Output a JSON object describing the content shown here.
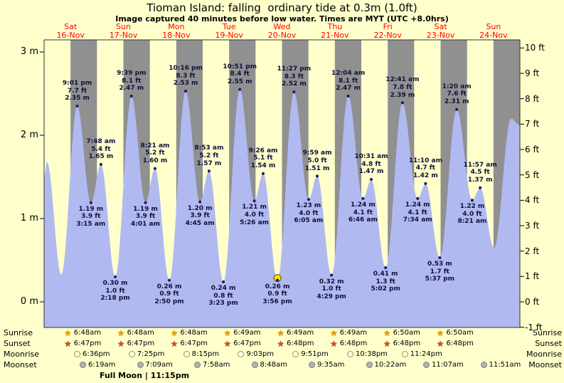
{
  "title": "Tioman Island: falling  ordinary tide at 0.3m (1.0ft)",
  "subtitle": "Image captured 40 minutes before low water. Times are MYT (UTC +8.0hrs)",
  "days": [
    {
      "name": "Sat",
      "date": "16-Nov"
    },
    {
      "name": "Sun",
      "date": "17-Nov"
    },
    {
      "name": "Mon",
      "date": "18-Nov"
    },
    {
      "name": "Tue",
      "date": "19-Nov"
    },
    {
      "name": "Wed",
      "date": "20-Nov"
    },
    {
      "name": "Thu",
      "date": "21-Nov"
    },
    {
      "name": "Fri",
      "date": "22-Nov"
    },
    {
      "name": "Sat",
      "date": "23-Nov"
    },
    {
      "name": "Sun",
      "date": "24-Nov"
    }
  ],
  "axes": {
    "left_unit": "m",
    "right_unit": "ft",
    "m_ticks": [
      {
        "label": "3 m",
        "value": 3
      },
      {
        "label": "2 m",
        "value": 2
      },
      {
        "label": "1 m",
        "value": 1
      },
      {
        "label": "0 m",
        "value": 0
      }
    ],
    "ft_ticks": [
      {
        "label": "10 ft",
        "value": 10
      },
      {
        "label": "9 ft",
        "value": 9
      },
      {
        "label": "8 ft",
        "value": 8
      },
      {
        "label": "7 ft",
        "value": 7
      },
      {
        "label": "6 ft",
        "value": 6
      },
      {
        "label": "5 ft",
        "value": 5
      },
      {
        "label": "4 ft",
        "value": 4
      },
      {
        "label": "3 ft",
        "value": 3
      },
      {
        "label": "2 ft",
        "value": 2
      },
      {
        "label": "1 ft",
        "value": 1
      },
      {
        "label": "0 ft",
        "value": 0
      },
      {
        "label": "-1 ft",
        "value": -1
      }
    ]
  },
  "chart_data": {
    "type": "area",
    "title": "Tide height curve for Tioman Island, Sat 16-Nov to Sun 24-Nov",
    "x_axis": "time (MYT), hours measured from Sat 16-Nov 00:00",
    "x_range_hours": [
      6,
      222
    ],
    "y_range_m": [
      -0.33,
      3.16
    ],
    "night_shading": "18:00 to 06:00 each day",
    "tide_events": [
      {
        "t": 21.03,
        "type": "high",
        "time": "9:01 pm",
        "height_ft": "7.7 ft",
        "height_m": "2.35 m",
        "m": 2.35
      },
      {
        "t": 27.25,
        "type": "low",
        "time": "3:15 am",
        "height_ft": "3.9 ft",
        "height_m": "1.19 m",
        "m": 1.19
      },
      {
        "t": 31.8,
        "type": "high",
        "time": "7:48 am",
        "height_ft": "5.4 ft",
        "height_m": "1.65 m",
        "m": 1.65
      },
      {
        "t": 38.3,
        "type": "low",
        "time": "2:18 pm",
        "height_ft": "1.0 ft",
        "height_m": "0.30 m",
        "m": 0.3
      },
      {
        "t": 45.65,
        "type": "high",
        "time": "9:39 pm",
        "height_ft": "8.1 ft",
        "height_m": "2.47 m",
        "m": 2.47
      },
      {
        "t": 52.02,
        "type": "low",
        "time": "4:01 am",
        "height_ft": "3.9 ft",
        "height_m": "1.19 m",
        "m": 1.19
      },
      {
        "t": 56.35,
        "type": "high",
        "time": "8:21 am",
        "height_ft": "5.2 ft",
        "height_m": "1.60 m",
        "m": 1.6
      },
      {
        "t": 62.83,
        "type": "low",
        "time": "2:50 pm",
        "height_ft": "0.9 ft",
        "height_m": "0.26 m",
        "m": 0.26
      },
      {
        "t": 70.27,
        "type": "high",
        "time": "10:16 pm",
        "height_ft": "8.3 ft",
        "height_m": "2.53 m",
        "m": 2.53
      },
      {
        "t": 76.75,
        "type": "low",
        "time": "4:45 am",
        "height_ft": "3.9 ft",
        "height_m": "1.20 m",
        "m": 1.2
      },
      {
        "t": 80.88,
        "type": "high",
        "time": "8:53 am",
        "height_ft": "5.2 ft",
        "height_m": "1.57 m",
        "m": 1.57
      },
      {
        "t": 87.38,
        "type": "low",
        "time": "3:23 pm",
        "height_ft": "0.8 ft",
        "height_m": "0.24 m",
        "m": 0.24
      },
      {
        "t": 94.85,
        "type": "high",
        "time": "10:51 pm",
        "height_ft": "8.4 ft",
        "height_m": "2.55 m",
        "m": 2.55
      },
      {
        "t": 101.43,
        "type": "low",
        "time": "5:26 am",
        "height_ft": "4.0 ft",
        "height_m": "1.21 m",
        "m": 1.21
      },
      {
        "t": 105.43,
        "type": "high",
        "time": "9:26 am",
        "height_ft": "5.1 ft",
        "height_m": "1.54 m",
        "m": 1.54
      },
      {
        "t": 111.93,
        "type": "low",
        "time": "3:56 pm",
        "height_ft": "0.9 ft",
        "height_m": "0.26 m",
        "m": 0.26,
        "current": true
      },
      {
        "t": 119.45,
        "type": "high",
        "time": "11:27 pm",
        "height_ft": "8.3 ft",
        "height_m": "2.52 m",
        "m": 2.52
      },
      {
        "t": 126.08,
        "type": "low",
        "time": "6:05 am",
        "height_ft": "4.0 ft",
        "height_m": "1.23 m",
        "m": 1.23
      },
      {
        "t": 129.98,
        "type": "high",
        "time": "9:59 am",
        "height_ft": "5.0 ft",
        "height_m": "1.51 m",
        "m": 1.51
      },
      {
        "t": 136.48,
        "type": "low",
        "time": "4:29 pm",
        "height_ft": "1.0 ft",
        "height_m": "0.32 m",
        "m": 0.32
      },
      {
        "t": 144.07,
        "type": "high",
        "time": "12:04 am",
        "height_ft": "8.1 ft",
        "height_m": "2.47 m",
        "m": 2.47
      },
      {
        "t": 150.77,
        "type": "low",
        "time": "6:46 am",
        "height_ft": "4.1 ft",
        "height_m": "1.24 m",
        "m": 1.24
      },
      {
        "t": 154.52,
        "type": "high",
        "time": "10:31 am",
        "height_ft": "4.8 ft",
        "height_m": "1.47 m",
        "m": 1.47
      },
      {
        "t": 161.03,
        "type": "low",
        "time": "5:02 pm",
        "height_ft": "1.3 ft",
        "height_m": "0.41 m",
        "m": 0.41
      },
      {
        "t": 168.68,
        "type": "high",
        "time": "12:41 am",
        "height_ft": "7.8 ft",
        "height_m": "2.39 m",
        "m": 2.39
      },
      {
        "t": 175.57,
        "type": "low",
        "time": "7:34 am",
        "height_ft": "4.1 ft",
        "height_m": "1.24 m",
        "m": 1.24
      },
      {
        "t": 179.17,
        "type": "high",
        "time": "11:10 am",
        "height_ft": "4.7 ft",
        "height_m": "1.42 m",
        "m": 1.42
      },
      {
        "t": 185.62,
        "type": "low",
        "time": "5:37 pm",
        "height_ft": "1.7 ft",
        "height_m": "0.53 m",
        "m": 0.53
      },
      {
        "t": 193.33,
        "type": "high",
        "time": "1:20 am",
        "height_ft": "7.6 ft",
        "height_m": "2.31 m",
        "m": 2.31
      },
      {
        "t": 200.35,
        "type": "low",
        "time": "8:21 am",
        "height_ft": "4.0 ft",
        "height_m": "1.22 m",
        "m": 1.22
      },
      {
        "t": 203.95,
        "type": "high",
        "time": "11:57 am",
        "height_ft": "4.5 ft",
        "height_m": "1.37 m",
        "m": 1.37
      }
    ],
    "edge_points": [
      {
        "t": 6.0,
        "m": 1.5
      },
      {
        "t": 7.3,
        "m": 1.68
      },
      {
        "t": 13.8,
        "m": 0.33
      },
      {
        "t": 210.3,
        "m": 0.65
      },
      {
        "t": 218.0,
        "m": 2.2
      },
      {
        "t": 222.0,
        "m": 2.12
      }
    ]
  },
  "almanac": {
    "rows": [
      {
        "label": "Sunrise",
        "times": [
          "6:48am",
          "6:48am",
          "6:48am",
          "6:49am",
          "6:49am",
          "6:49am",
          "6:50am",
          "6:50am"
        ]
      },
      {
        "label": "Sunset",
        "times": [
          "6:47pm",
          "6:47pm",
          "6:47pm",
          "6:47pm",
          "6:48pm",
          "6:48pm",
          "6:48pm",
          "6:48pm"
        ]
      },
      {
        "label": "Moonrise",
        "times": [
          "6:36pm",
          "7:25pm",
          "8:15pm",
          "9:03pm",
          "9:51pm",
          "10:38pm",
          "11:24pm"
        ]
      },
      {
        "label": "Moonset",
        "times": [
          "6:19am",
          "7:09am",
          "7:58am",
          "8:48am",
          "9:35am",
          "10:22am",
          "11:07am",
          "11:51am"
        ]
      }
    ],
    "footnote": "Full Moon | 11:15pm"
  },
  "colors": {
    "page_bg": "#ffffcc",
    "plot_day_bg": "#ffffcc",
    "night_band": "#909090",
    "tide_fill": "#b0baf0",
    "day_label": "#ff0000",
    "marker": "#1a1a6e",
    "current_marker": "#ffe000"
  }
}
